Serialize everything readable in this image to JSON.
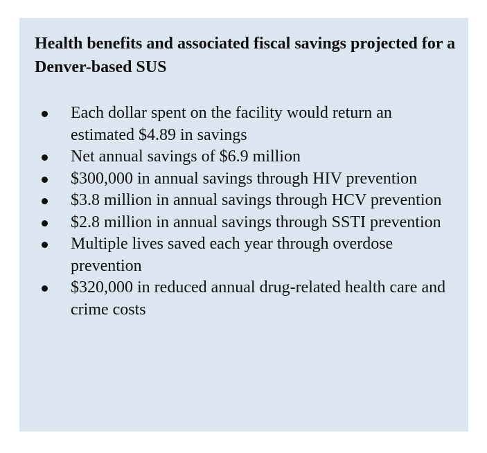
{
  "callout": {
    "title": "Health benefits and associated fiscal savings projected for a Denver-based SUS",
    "bullets": [
      "Each dollar spent on the facility would return an estimated $4.89 in savings",
      "Net annual savings of $6.9 million",
      "$300,000 in annual savings through HIV prevention",
      "$3.8 million in annual savings through HCV prevention",
      "$2.8 million in annual savings through SSTI prevention",
      "Multiple lives saved each year through overdose prevention",
      "$320,000 in reduced annual drug-related health care and crime costs"
    ],
    "background_color": "#dce6f0",
    "text_color": "#111111"
  }
}
